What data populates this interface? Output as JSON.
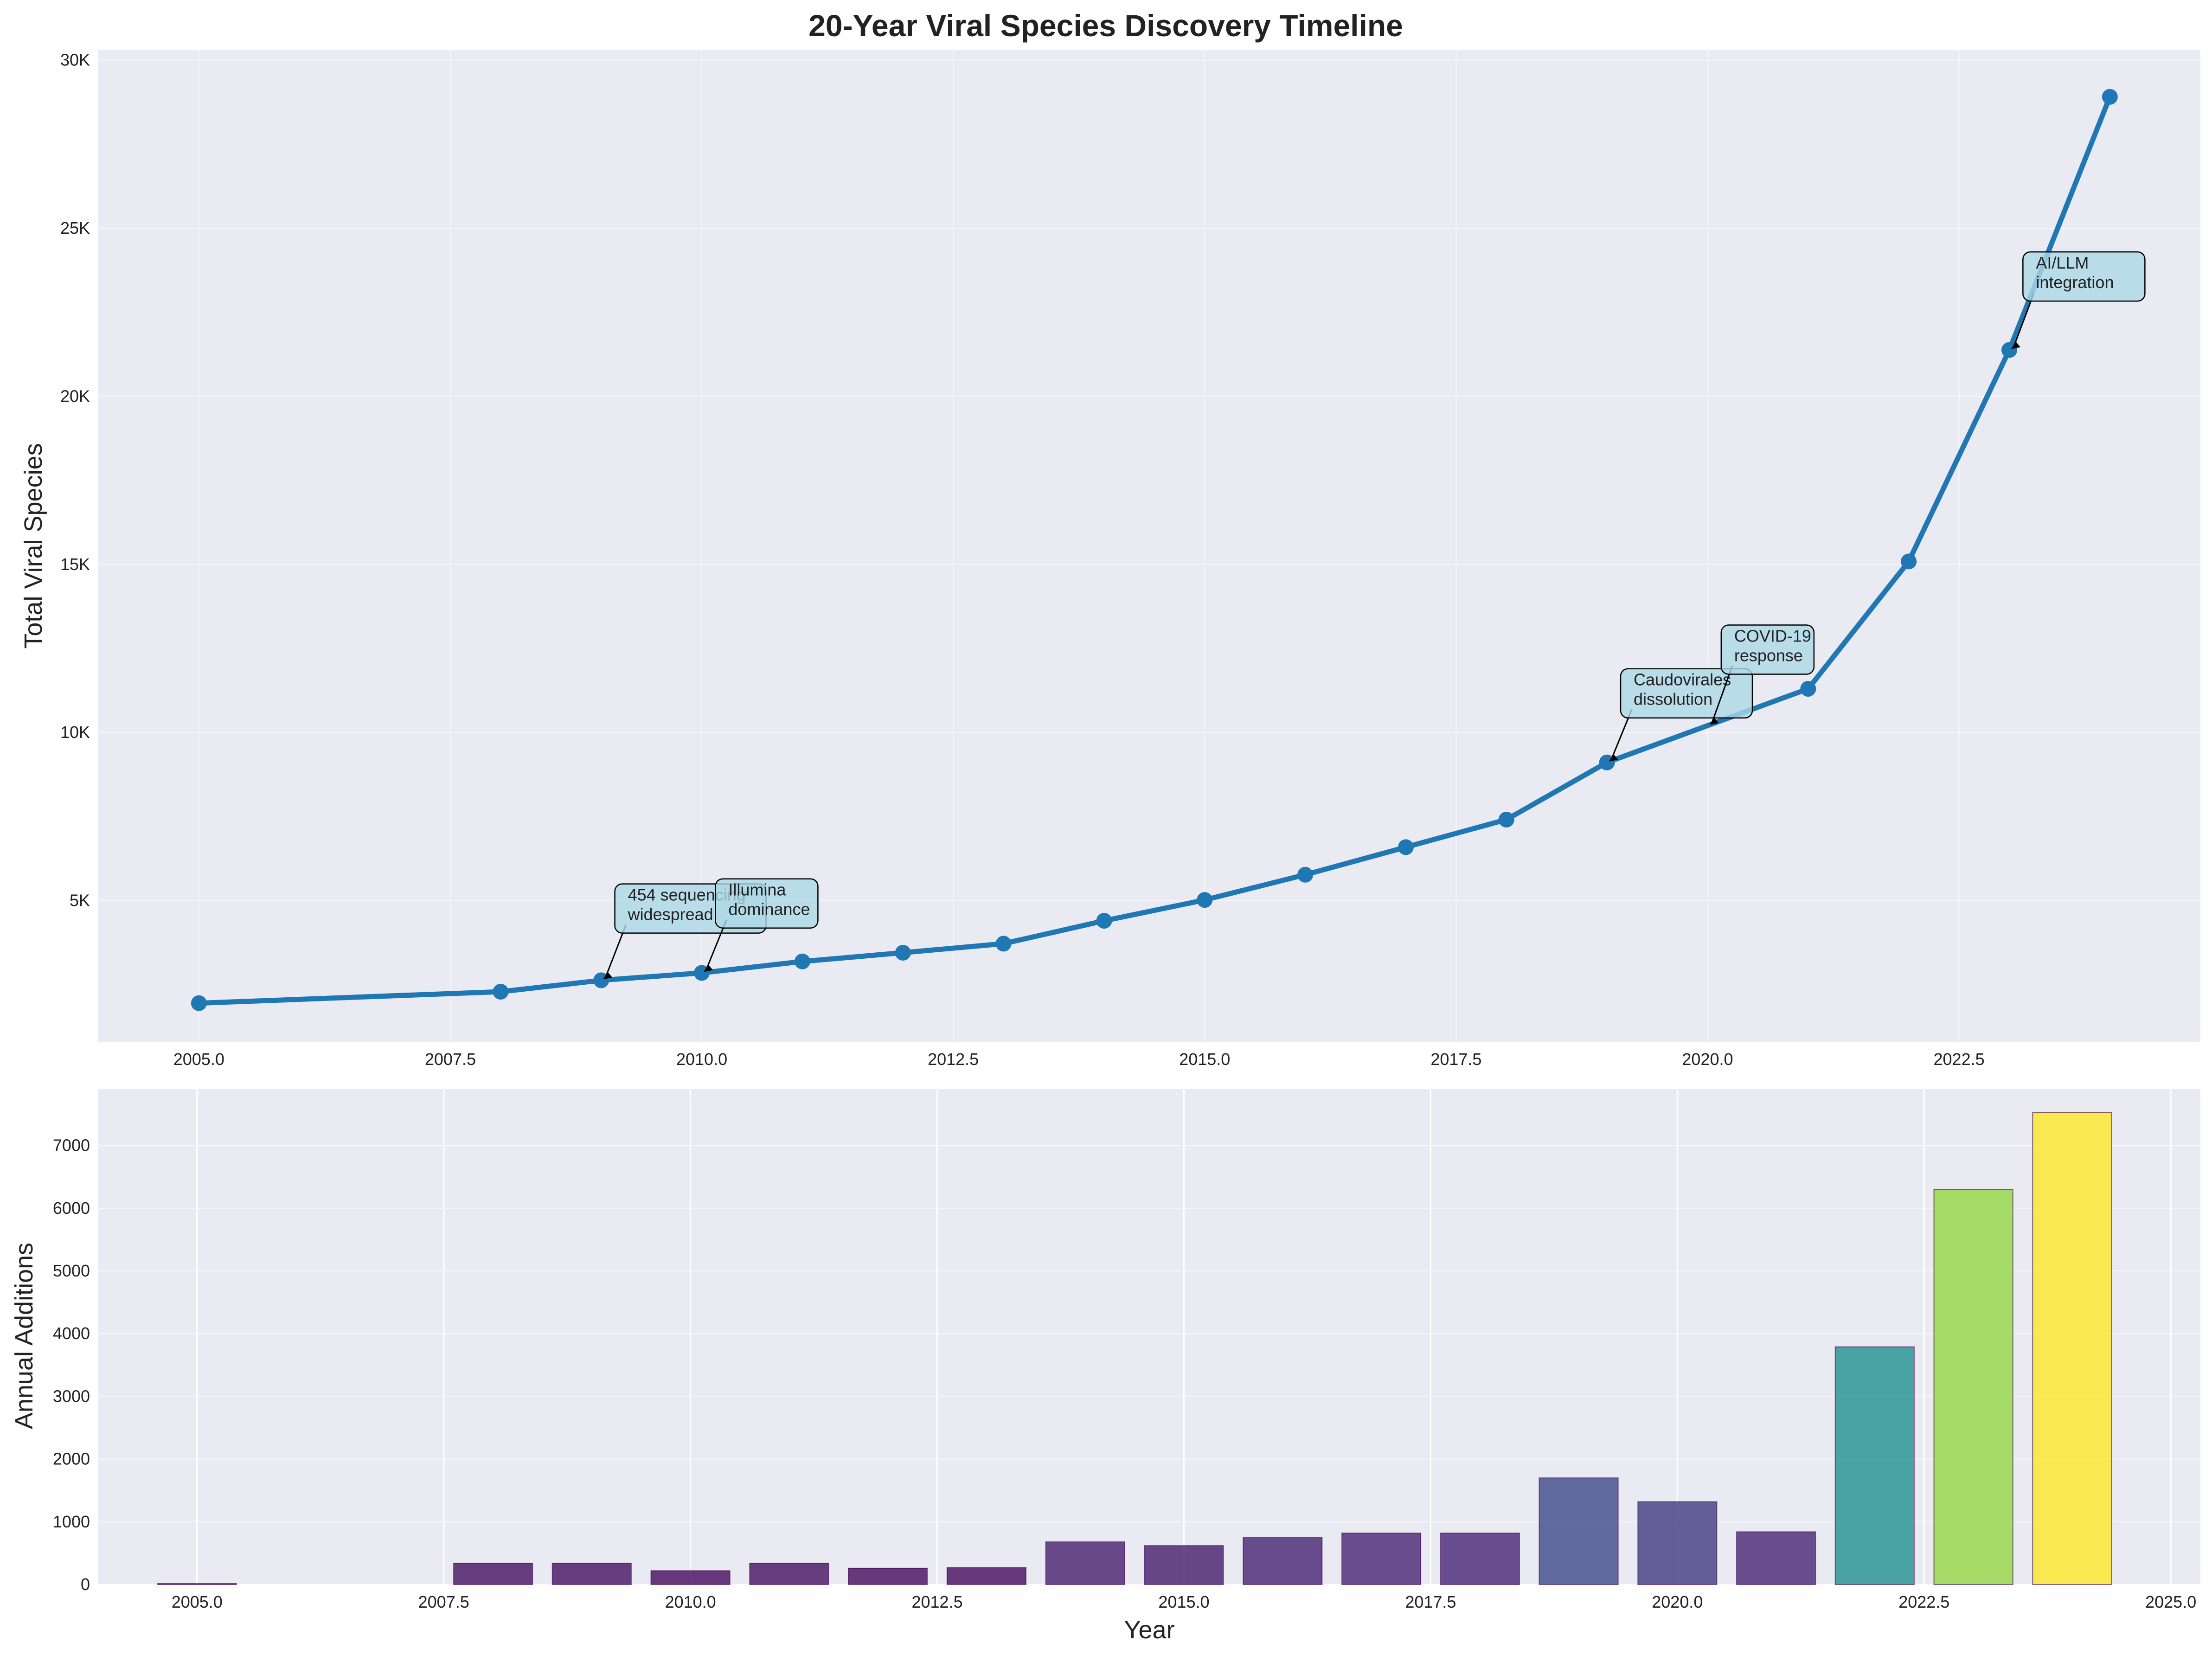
{
  "title": "20-Year Viral Species Discovery Timeline",
  "chart_data": [
    {
      "type": "line",
      "ylabel": "Total Viral Species",
      "xlabel": "",
      "x_ticks": [
        "2005.0",
        "2007.5",
        "2010.0",
        "2012.5",
        "2015.0",
        "2017.5",
        "2020.0",
        "2022.5"
      ],
      "y_ticks": [
        "5K",
        "10K",
        "15K",
        "20K",
        "25K",
        "30K"
      ],
      "xlim": [
        2004.0,
        2024.9
      ],
      "ylim": [
        800,
        30300
      ],
      "grid": true,
      "color": "#1f77b4",
      "x": [
        2005,
        2008,
        2009,
        2010,
        2011,
        2012,
        2013,
        2014,
        2015,
        2016,
        2017,
        2018,
        2019,
        2021,
        2022,
        2023,
        2024
      ],
      "y": [
        1950,
        2290,
        2630,
        2850,
        3190,
        3450,
        3720,
        4400,
        5020,
        5770,
        6590,
        7410,
        9110,
        11300,
        15090,
        21380,
        28910
      ],
      "annotations": [
        {
          "text": [
            "454 sequencing",
            "widespread"
          ],
          "x": 2009,
          "y": 2630,
          "text_x": 2009.2,
          "text_y": 4200
        },
        {
          "text": [
            "Illumina",
            "dominance"
          ],
          "x": 2010,
          "y": 2850,
          "text_x": 2010.2,
          "text_y": 4350
        },
        {
          "text": [
            "Caudovirales",
            "dissolution"
          ],
          "x": 2019,
          "y": 9110,
          "text_x": 2019.2,
          "text_y": 10600
        },
        {
          "text": [
            "COVID-19",
            "response"
          ],
          "x": 2020,
          "y": 10200,
          "text_x": 2020.2,
          "text_y": 11900
        },
        {
          "text": [
            "AI/LLM",
            "integration"
          ],
          "x": 2023,
          "y": 21380,
          "text_x": 2023.2,
          "text_y": 23000
        }
      ],
      "annotation_box_color": "#add8e6"
    },
    {
      "type": "bar",
      "xlabel": "Year",
      "ylabel": "Annual Additions",
      "x_ticks": [
        "2005.0",
        "2007.5",
        "2010.0",
        "2012.5",
        "2015.0",
        "2017.5",
        "2020.0",
        "2022.5",
        "2025.0"
      ],
      "y_ticks": [
        "0",
        "1000",
        "2000",
        "3000",
        "4000",
        "5000",
        "6000",
        "7000"
      ],
      "xlim": [
        2004.0,
        2025.3
      ],
      "ylim": [
        0,
        7900
      ],
      "grid": true,
      "colormap": "viridis",
      "x": [
        2005,
        2008,
        2009,
        2010,
        2011,
        2012,
        2013,
        2014,
        2015,
        2016,
        2017,
        2018,
        2019,
        2020,
        2021,
        2022,
        2023,
        2024
      ],
      "values": [
        15,
        340,
        340,
        220,
        340,
        260,
        270,
        680,
        620,
        750,
        820,
        820,
        1700,
        1320,
        840,
        3790,
        6300,
        7530
      ]
    }
  ]
}
